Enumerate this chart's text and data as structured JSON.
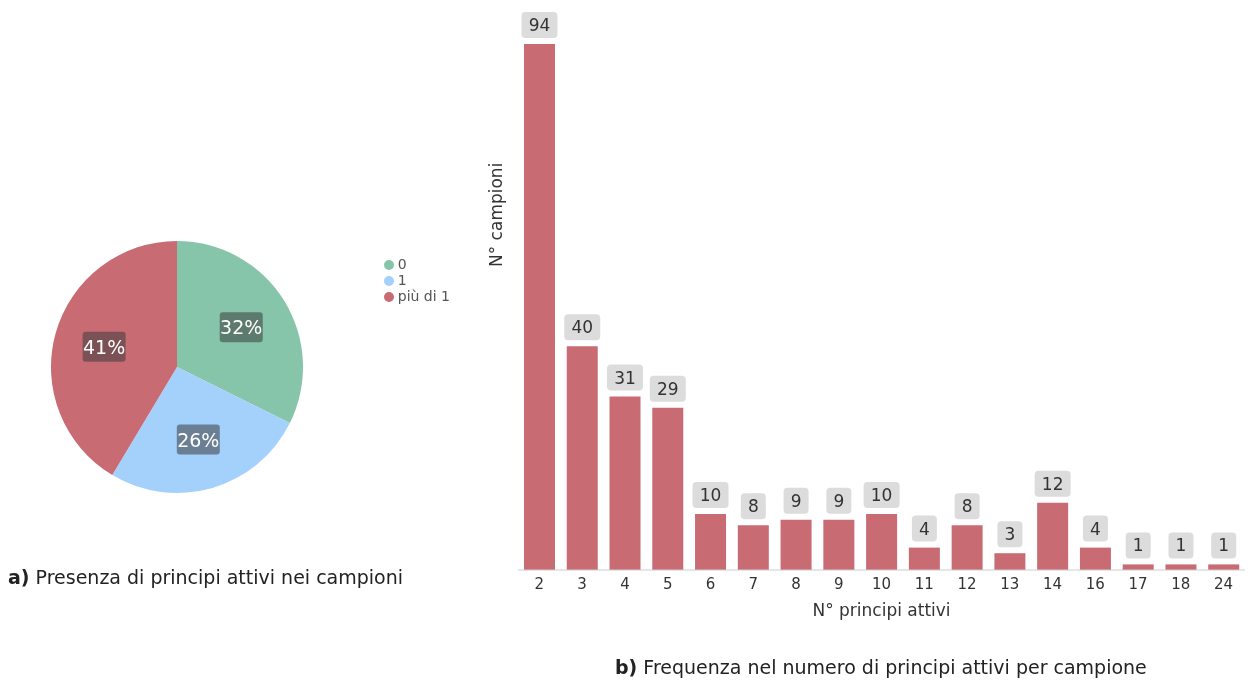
{
  "chart_data": [
    {
      "type": "pie",
      "title": "a) Presenza di principi attivi nei campioni",
      "categories": [
        "0",
        "1",
        "più di 1"
      ],
      "values": [
        32,
        26,
        41
      ],
      "value_labels": [
        "32%",
        "26%",
        "41%"
      ],
      "colors": [
        "#86c5aa",
        "#a3d1fc",
        "#c96b73"
      ],
      "data_labels": true,
      "legend": "right"
    },
    {
      "type": "bar",
      "title": "b) Frequenza nel numero di principi attivi per campione",
      "xlabel": "N° principi attivi",
      "ylabel": "N° campioni",
      "categories": [
        "2",
        "3",
        "4",
        "5",
        "6",
        "7",
        "8",
        "9",
        "10",
        "11",
        "12",
        "13",
        "14",
        "16",
        "17",
        "18",
        "24"
      ],
      "values": [
        94,
        40,
        31,
        29,
        10,
        8,
        9,
        9,
        10,
        4,
        8,
        3,
        12,
        4,
        1,
        1,
        1
      ],
      "color": "#c96b73",
      "data_labels": true,
      "tick_labels": "x"
    }
  ]
}
